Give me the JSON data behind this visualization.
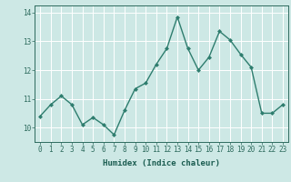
{
  "x": [
    0,
    1,
    2,
    3,
    4,
    5,
    6,
    7,
    8,
    9,
    10,
    11,
    12,
    13,
    14,
    15,
    16,
    17,
    18,
    19,
    20,
    21,
    22,
    23
  ],
  "y": [
    10.4,
    10.8,
    11.1,
    10.8,
    10.1,
    10.35,
    10.1,
    9.75,
    10.6,
    11.35,
    11.55,
    12.2,
    12.75,
    13.85,
    12.75,
    12.0,
    12.45,
    13.35,
    13.05,
    12.55,
    12.1,
    10.5,
    10.5,
    10.8
  ],
  "line_color": "#2e7d6e",
  "marker": "D",
  "markersize": 2.0,
  "linewidth": 1.0,
  "xlabel": "Humidex (Indice chaleur)",
  "xlim": [
    -0.5,
    23.5
  ],
  "ylim": [
    9.5,
    14.25
  ],
  "yticks": [
    10,
    11,
    12,
    13,
    14
  ],
  "xticks": [
    0,
    1,
    2,
    3,
    4,
    5,
    6,
    7,
    8,
    9,
    10,
    11,
    12,
    13,
    14,
    15,
    16,
    17,
    18,
    19,
    20,
    21,
    22,
    23
  ],
  "bg_color": "#cde8e5",
  "grid_color": "#ffffff",
  "tick_color": "#2e6b5e",
  "label_color": "#1a5c50",
  "xlabel_fontsize": 6.5,
  "tick_fontsize": 5.5
}
